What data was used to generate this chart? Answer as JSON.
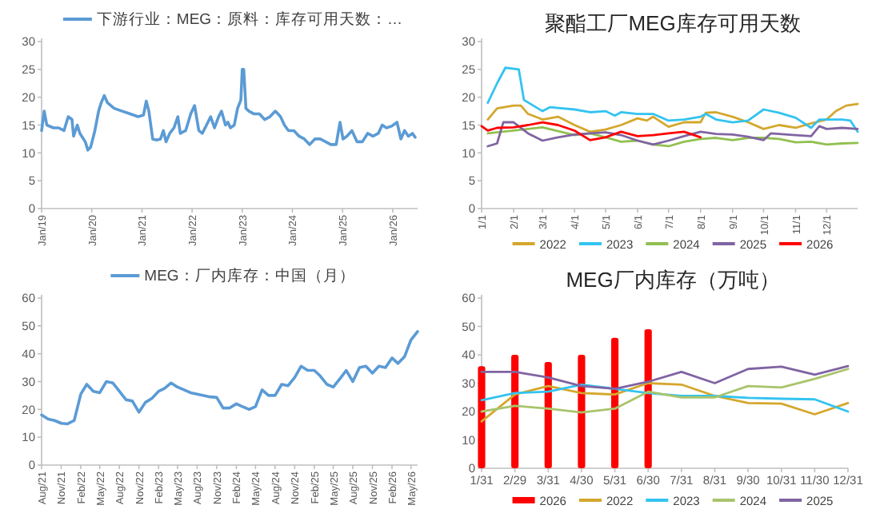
{
  "chart_data": [
    {
      "type": "line",
      "legend": "top",
      "ylim": [
        0,
        30
      ],
      "yticks": [
        0,
        5,
        10,
        15,
        20,
        25,
        30
      ],
      "xlim": [
        "2019-01-01",
        "2026-07-01"
      ],
      "xticks": [
        {
          "value": "2019-01-01",
          "label": "Jan/19"
        },
        {
          "value": "2020-01-01",
          "label": "Jan/20"
        },
        {
          "value": "2021-01-01",
          "label": "Jan/21"
        },
        {
          "value": "2022-01-01",
          "label": "Jan/22"
        },
        {
          "value": "2023-01-01",
          "label": "Jan/23"
        },
        {
          "value": "2024-01-01",
          "label": "Jan/24"
        },
        {
          "value": "2025-01-01",
          "label": "Jan/25"
        },
        {
          "value": "2026-01-01",
          "label": "Jan/26"
        }
      ],
      "series": [
        {
          "name": "下游行业：MEG：原料：库存可用天数：…",
          "color": "#5b9bd5",
          "x": [
            "2019-01-01",
            "2019-01-20",
            "2019-02-08",
            "2019-03-28",
            "2019-05-05",
            "2019-06-13",
            "2019-07-14",
            "2019-08-10",
            "2019-08-22",
            "2019-09-18",
            "2019-10-07",
            "2019-11-15",
            "2019-12-04",
            "2019-12-24",
            "2020-01-24",
            "2020-02-20",
            "2020-03-10",
            "2020-04-01",
            "2020-04-25",
            "2020-06-13",
            "2020-08-10",
            "2020-10-07",
            "2020-12-04",
            "2021-01-12",
            "2021-02-01",
            "2021-02-20",
            "2021-03-20",
            "2021-04-16",
            "2021-05-16",
            "2021-06-06",
            "2021-06-25",
            "2021-07-22",
            "2021-08-22",
            "2021-09-19",
            "2021-10-07",
            "2021-11-15",
            "2021-12-22",
            "2022-01-19",
            "2022-02-19",
            "2022-03-16",
            "2022-04-16",
            "2022-05-16",
            "2022-06-13",
            "2022-07-13",
            "2022-08-03",
            "2022-09-01",
            "2022-09-19",
            "2022-10-07",
            "2022-11-04",
            "2022-11-28",
            "2022-12-22",
            "2023-01-01",
            "2023-01-12",
            "2023-01-28",
            "2023-02-19",
            "2023-03-28",
            "2023-05-06",
            "2023-06-13",
            "2023-07-22",
            "2023-08-30",
            "2023-10-07",
            "2023-11-04",
            "2023-12-04",
            "2024-01-12",
            "2024-02-19",
            "2024-03-28",
            "2024-05-06",
            "2024-06-13",
            "2024-07-22",
            "2024-08-30",
            "2024-10-07",
            "2024-11-15",
            "2024-12-13",
            "2025-01-04",
            "2025-02-01",
            "2025-03-10",
            "2025-04-16",
            "2025-05-25",
            "2025-07-02",
            "2025-08-10",
            "2025-09-18",
            "2025-10-16",
            "2025-11-16",
            "2025-12-24",
            "2026-02-01",
            "2026-03-01",
            "2026-03-28",
            "2026-04-25",
            "2026-05-25",
            "2026-06-13"
          ],
          "values": [
            14,
            17.5,
            15,
            14.5,
            14.5,
            14,
            16.5,
            16,
            13,
            15,
            13.5,
            12,
            10.5,
            11,
            14,
            17.5,
            19,
            20.3,
            19,
            18,
            17.5,
            17,
            16.5,
            16.8,
            19.3,
            17.5,
            12.5,
            12.3,
            12.5,
            14,
            12,
            13.5,
            14.5,
            16.5,
            13.5,
            14,
            17,
            18.5,
            14,
            13.5,
            15,
            16.5,
            14.5,
            16.5,
            17.5,
            15,
            15.5,
            14.5,
            15,
            18,
            19.5,
            25,
            25,
            18,
            17.5,
            17,
            17,
            16,
            16.5,
            17.5,
            16.5,
            15,
            14,
            14,
            13,
            12.5,
            11.5,
            12.5,
            12.5,
            12,
            11.5,
            11.5,
            15.5,
            12.5,
            13,
            14,
            12,
            12,
            13.5,
            13,
            13.5,
            15,
            14.5,
            14.8,
            15.5,
            12.5,
            14,
            13,
            13.5,
            12.8
          ]
        }
      ]
    },
    {
      "type": "line",
      "title": "聚酯工厂MEG库存可用天数",
      "legend": "bottom",
      "ylim": [
        0,
        30
      ],
      "yticks": [
        0,
        5,
        10,
        15,
        20,
        25,
        30
      ],
      "xlim": [
        "--01-01",
        "--12-31"
      ],
      "xticks": [
        {
          "value": "--01-01",
          "label": "1/1"
        },
        {
          "value": "--02-01",
          "label": "2/1"
        },
        {
          "value": "--03-01",
          "label": "3/1"
        },
        {
          "value": "--04-01",
          "label": "4/1"
        },
        {
          "value": "--05-01",
          "label": "5/1"
        },
        {
          "value": "--06-01",
          "label": "6/1"
        },
        {
          "value": "--07-01",
          "label": "7/1"
        },
        {
          "value": "--08-01",
          "label": "8/1"
        },
        {
          "value": "--09-01",
          "label": "9/1"
        },
        {
          "value": "--10-01",
          "label": "10/1"
        },
        {
          "value": "--11-01",
          "label": "11/1"
        },
        {
          "value": "--12-01",
          "label": "12/1"
        }
      ],
      "series": [
        {
          "name": "2022",
          "color": "#d4a72c",
          "x": [
            "--01-07",
            "--01-16",
            "--02-01",
            "--02-08",
            "--02-15",
            "--03-01",
            "--03-16",
            "--04-01",
            "--04-16",
            "--05-01",
            "--05-16",
            "--06-01",
            "--06-10",
            "--06-16",
            "--07-01",
            "--07-16",
            "--08-01",
            "--08-06",
            "--08-16",
            "--09-01",
            "--09-16",
            "--10-01",
            "--10-16",
            "--11-01",
            "--11-16",
            "--12-01",
            "--12-10",
            "--12-20",
            "--12-31"
          ],
          "values": [
            16,
            18,
            18.5,
            18.5,
            17,
            16,
            16.5,
            15,
            13.8,
            14.2,
            15,
            16.2,
            15.8,
            16.5,
            14.7,
            15.5,
            15.5,
            17.2,
            17.3,
            16.5,
            15.5,
            14.3,
            15,
            14.5,
            15.3,
            16,
            17.5,
            18.5,
            18.8
          ]
        },
        {
          "name": "2023",
          "color": "#33c3f0",
          "x": [
            "--01-07",
            "--01-16",
            "--01-24",
            "--02-06",
            "--02-11",
            "--03-01",
            "--03-08",
            "--04-01",
            "--04-16",
            "--05-01",
            "--05-10",
            "--05-16",
            "--06-01",
            "--06-16",
            "--07-01",
            "--07-16",
            "--08-01",
            "--08-06",
            "--08-16",
            "--09-01",
            "--09-16",
            "--10-01",
            "--10-16",
            "--11-01",
            "--11-16",
            "--11-24",
            "--12-16",
            "--12-24",
            "--12-31"
          ],
          "values": [
            19,
            22.5,
            25.3,
            25,
            19.5,
            17.5,
            18.2,
            17.8,
            17.3,
            17.5,
            16.7,
            17.3,
            17,
            17,
            15.8,
            16,
            16.5,
            17,
            16,
            15.5,
            15.8,
            17.8,
            17.2,
            16.3,
            14.5,
            16,
            16,
            15.8,
            13.8
          ]
        },
        {
          "name": "2024",
          "color": "#92c050",
          "x": [
            "--01-07",
            "--02-01",
            "--03-01",
            "--04-01",
            "--04-16",
            "--05-01",
            "--05-16",
            "--06-01",
            "--06-16",
            "--07-01",
            "--07-16",
            "--08-01",
            "--08-16",
            "--09-01",
            "--09-16",
            "--10-01",
            "--10-16",
            "--11-01",
            "--11-16",
            "--12-01",
            "--12-16",
            "--12-31"
          ],
          "values": [
            13.5,
            14,
            14.6,
            13.2,
            13.5,
            12.8,
            12,
            12.2,
            11.5,
            11.2,
            12,
            12.5,
            12.7,
            12.3,
            12.7,
            12.7,
            12.5,
            11.9,
            12,
            11.5,
            11.7,
            11.8
          ]
        },
        {
          "name": "2025",
          "color": "#8064a2",
          "x": [
            "--01-07",
            "--01-16",
            "--01-22",
            "--02-01",
            "--02-15",
            "--03-01",
            "--03-16",
            "--04-01",
            "--04-16",
            "--05-01",
            "--05-16",
            "--06-01",
            "--06-16",
            "--07-01",
            "--07-16",
            "--08-01",
            "--08-16",
            "--09-01",
            "--09-16",
            "--10-01",
            "--10-08",
            "--11-01",
            "--11-16",
            "--11-24",
            "--12-01",
            "--12-16",
            "--12-31"
          ],
          "values": [
            11.2,
            11.7,
            15.5,
            15.5,
            13.5,
            12.2,
            12.8,
            13.3,
            13.5,
            13.7,
            13.2,
            12.2,
            11.5,
            12.2,
            13,
            13.8,
            13.4,
            13.3,
            12.9,
            12.3,
            13.5,
            13.2,
            13,
            14.8,
            14.3,
            14.5,
            14.3
          ]
        },
        {
          "name": "2026",
          "color": "#ff0000",
          "x": [
            "--01-01",
            "--01-07",
            "--01-16",
            "--02-01",
            "--02-15",
            "--03-01",
            "--03-16",
            "--04-01",
            "--04-16",
            "--05-01",
            "--05-16",
            "--06-01",
            "--06-16",
            "--07-01",
            "--07-16",
            "--08-01"
          ],
          "values": [
            14.8,
            14,
            14.5,
            14.6,
            15,
            15.5,
            15,
            14,
            12.3,
            12.8,
            13.8,
            13,
            13.2,
            13.5,
            13.8,
            12.8
          ]
        }
      ]
    },
    {
      "type": "line",
      "legend": "top",
      "ylim": [
        0,
        60
      ],
      "yticks": [
        0,
        10,
        20,
        30,
        40,
        50,
        60
      ],
      "xlim": [
        "2021-08-01",
        "2026-06-01"
      ],
      "xticks": [
        {
          "value": "2021-08-01",
          "label": "Aug/21"
        },
        {
          "value": "2021-11-01",
          "label": "Nov/21"
        },
        {
          "value": "2022-02-01",
          "label": "Feb/22"
        },
        {
          "value": "2022-05-01",
          "label": "May/22"
        },
        {
          "value": "2022-08-01",
          "label": "Aug/22"
        },
        {
          "value": "2022-11-01",
          "label": "Nov/22"
        },
        {
          "value": "2023-02-01",
          "label": "Feb/23"
        },
        {
          "value": "2023-05-01",
          "label": "May/23"
        },
        {
          "value": "2023-08-01",
          "label": "Aug/23"
        },
        {
          "value": "2023-11-01",
          "label": "Nov/23"
        },
        {
          "value": "2024-02-01",
          "label": "Feb/24"
        },
        {
          "value": "2024-05-01",
          "label": "May/24"
        },
        {
          "value": "2024-08-01",
          "label": "Aug/24"
        },
        {
          "value": "2024-11-01",
          "label": "Nov/24"
        },
        {
          "value": "2025-02-01",
          "label": "Feb/25"
        },
        {
          "value": "2025-05-01",
          "label": "May/25"
        },
        {
          "value": "2025-08-01",
          "label": "Aug/25"
        },
        {
          "value": "2025-11-01",
          "label": "Nov/25"
        },
        {
          "value": "2026-02-01",
          "label": "Feb/26"
        },
        {
          "value": "2026-05-01",
          "label": "May/26"
        }
      ],
      "series": [
        {
          "name": "MEG：厂内库存：中国（月）",
          "color": "#5b9bd5",
          "x": [
            "2021-08",
            "2021-09",
            "2021-10",
            "2021-11",
            "2021-12",
            "2022-01",
            "2022-02",
            "2022-03",
            "2022-04",
            "2022-05",
            "2022-06",
            "2022-07",
            "2022-08",
            "2022-09",
            "2022-10",
            "2022-11",
            "2022-12",
            "2023-01",
            "2023-02",
            "2023-03",
            "2023-04",
            "2023-05",
            "2023-06",
            "2023-07",
            "2023-08",
            "2023-09",
            "2023-10",
            "2023-11",
            "2023-12",
            "2024-01",
            "2024-02",
            "2024-03",
            "2024-04",
            "2024-05",
            "2024-06",
            "2024-07",
            "2024-08",
            "2024-09",
            "2024-10",
            "2024-11",
            "2024-12",
            "2025-01",
            "2025-02",
            "2025-03",
            "2025-04",
            "2025-05",
            "2025-06",
            "2025-07",
            "2025-08",
            "2025-09",
            "2025-10",
            "2025-11",
            "2025-12",
            "2026-01",
            "2026-02",
            "2026-03",
            "2026-04",
            "2026-05",
            "2026-06"
          ],
          "values": [
            18,
            16.5,
            16,
            15,
            14.8,
            16,
            25.5,
            29,
            26.5,
            26,
            30,
            29.5,
            26.5,
            23.5,
            23,
            19,
            22.5,
            24,
            26.5,
            27.5,
            29.5,
            28,
            27,
            26,
            25.5,
            25,
            24.5,
            24.3,
            20.5,
            20.5,
            22,
            21,
            20,
            21,
            27,
            25,
            25,
            29,
            28.5,
            31.5,
            35.5,
            34,
            34,
            32,
            29,
            28,
            31,
            34,
            30,
            35,
            35.5,
            33,
            35.5,
            35,
            38.5,
            36.5,
            39,
            45,
            48
          ]
        }
      ]
    },
    {
      "type": "line",
      "title": "MEG厂内库存（万吨）",
      "legend": "bottom",
      "ylim": [
        0,
        60
      ],
      "yticks": [
        0,
        10,
        20,
        30,
        40,
        50,
        60
      ],
      "categories": [
        "1/31",
        "2/29",
        "3/31",
        "4/30",
        "5/31",
        "6/30",
        "7/31",
        "8/31",
        "9/30",
        "10/31",
        "11/30",
        "12/31"
      ],
      "series": [
        {
          "name": "2026",
          "type": "bar",
          "color": "#ff0000",
          "values": [
            36,
            40,
            37.5,
            40,
            46,
            49,
            null,
            null,
            null,
            null,
            null,
            null
          ]
        },
        {
          "name": "2022",
          "color": "#d4a72c",
          "values": [
            16.5,
            26,
            29,
            26.5,
            26,
            30,
            29.5,
            25.5,
            23,
            22.8,
            19,
            23
          ]
        },
        {
          "name": "2023",
          "color": "#33c3f0",
          "values": [
            24,
            26.5,
            27,
            29.5,
            28,
            26.5,
            25.5,
            25.5,
            24.8,
            24.5,
            24.3,
            20
          ]
        },
        {
          "name": "2024",
          "color": "#a9c46c",
          "values": [
            20,
            22,
            21,
            19.7,
            21,
            27,
            25,
            25,
            29,
            28.5,
            31.5,
            35
          ]
        },
        {
          "name": "2025",
          "color": "#8064a2",
          "values": [
            34,
            34,
            32,
            29,
            28,
            30.5,
            34,
            30,
            35,
            35.8,
            33,
            36
          ]
        }
      ]
    }
  ]
}
